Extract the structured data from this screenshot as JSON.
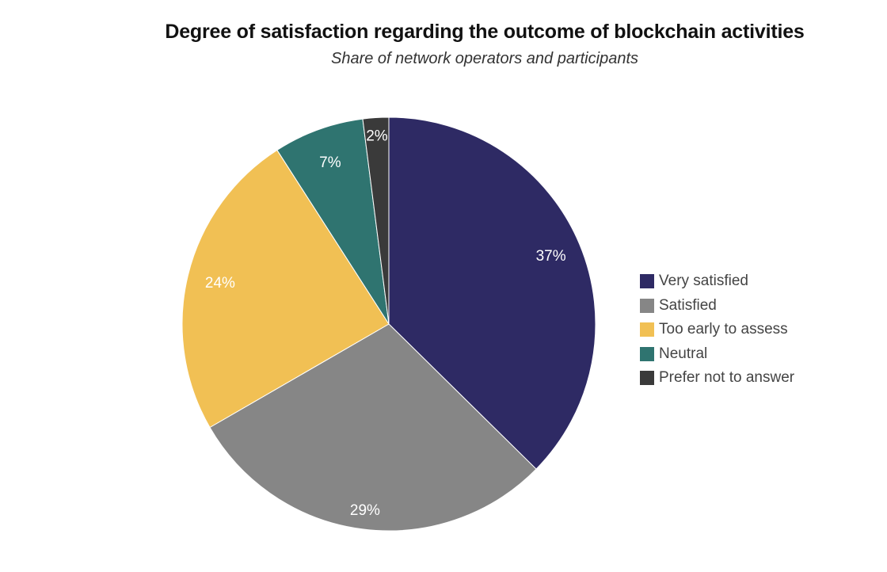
{
  "chart_data": {
    "type": "pie",
    "title": "Degree of satisfaction regarding the outcome of blockchain activities",
    "subtitle": "Share of network operators and participants",
    "slices": [
      {
        "name": "Very satisfied",
        "value": 37,
        "label": "37%",
        "color": "#2e2a64"
      },
      {
        "name": "Satisfied",
        "value": 29,
        "label": "29%",
        "color": "#868686"
      },
      {
        "name": "Too early to assess",
        "value": 24,
        "label": "24%",
        "color": "#f1c054"
      },
      {
        "name": "Neutral",
        "value": 7,
        "label": "7%",
        "color": "#2f7470"
      },
      {
        "name": "Prefer not to answer",
        "value": 2,
        "label": "2%",
        "color": "#3a3a3a"
      }
    ],
    "legend_position": "right",
    "start_angle": "12 o'clock",
    "direction": "clockwise"
  }
}
